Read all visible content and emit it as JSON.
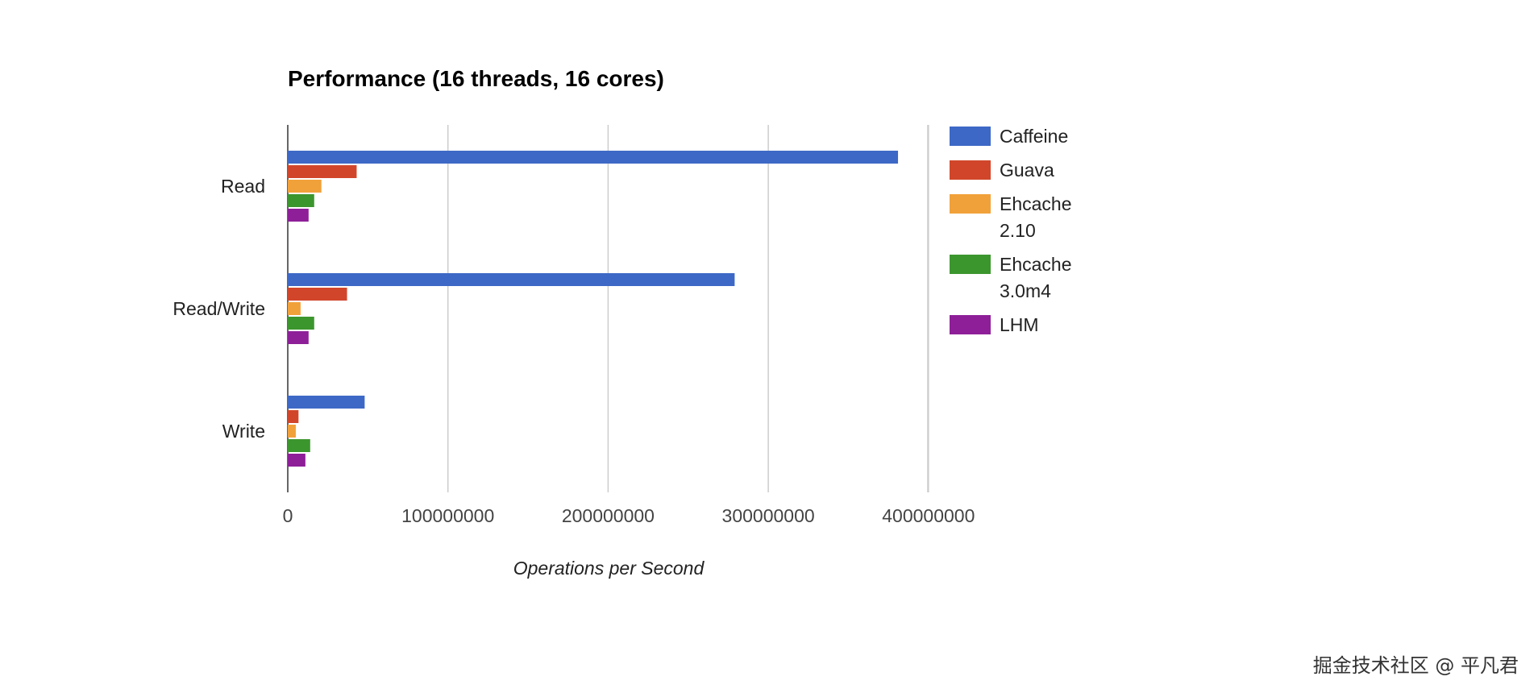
{
  "chart_data": {
    "type": "bar",
    "orientation": "horizontal",
    "title": "Performance (16 threads, 16 cores)",
    "xlabel": "Operations per Second",
    "ylabel": "",
    "categories": [
      "Read",
      "Read/Write",
      "Write"
    ],
    "series": [
      {
        "name": "Caffeine",
        "name_lines": [
          "Caffeine"
        ],
        "color": "#3d68c6",
        "values": [
          381000000,
          279000000,
          48000000
        ]
      },
      {
        "name": "Guava",
        "name_lines": [
          "Guava"
        ],
        "color": "#d1462a",
        "values": [
          43000000,
          37000000,
          6700000
        ]
      },
      {
        "name": "Ehcache 2.10",
        "name_lines": [
          "Ehcache",
          "2.10"
        ],
        "color": "#f1a13a",
        "values": [
          21000000,
          8000000,
          5000000
        ]
      },
      {
        "name": "Ehcache 3.0m4",
        "name_lines": [
          "Ehcache",
          "3.0m4"
        ],
        "color": "#3c962e",
        "values": [
          16500000,
          16500000,
          14000000
        ]
      },
      {
        "name": "LHM",
        "name_lines": [
          "LHM"
        ],
        "color": "#8e1f98",
        "values": [
          13000000,
          13000000,
          11000000
        ]
      }
    ],
    "xlim": [
      0,
      400000000
    ],
    "xticks": [
      "0",
      "100000000",
      "200000000",
      "300000000",
      "400000000"
    ],
    "grid": true,
    "legend": "right"
  },
  "watermark": "掘金技术社区 @ 平凡君"
}
